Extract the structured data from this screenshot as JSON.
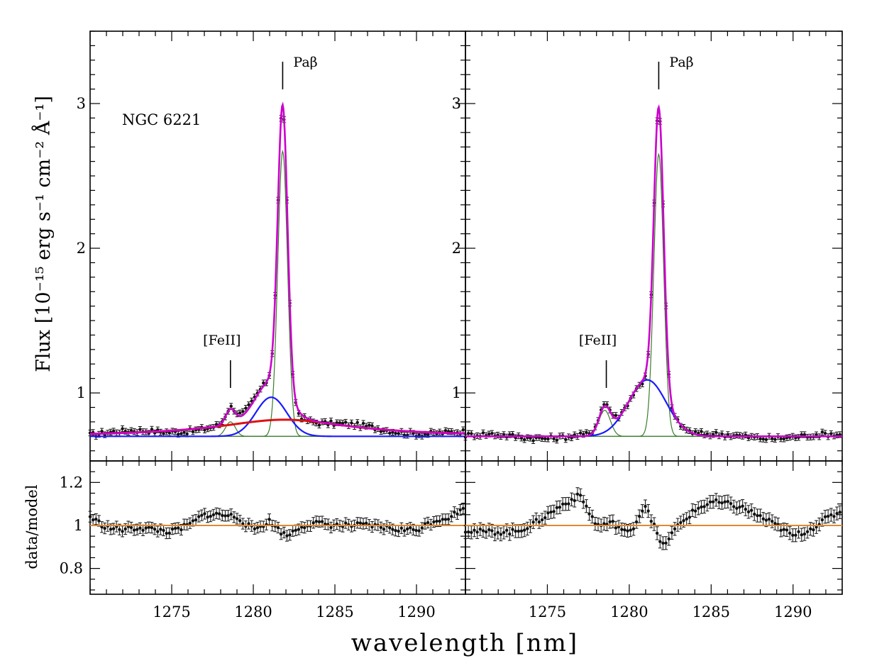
{
  "figure": {
    "object_label": "NGC 6221",
    "x_axis_label": "wavelength [nm]",
    "y_axis_label": "Flux [10⁻¹⁵ erg s⁻¹ cm⁻² Å⁻¹]",
    "ratio_axis_label": "data/model",
    "line_labels": {
      "pab": "Paβ",
      "feii": "[FeII]"
    }
  },
  "colors": {
    "data": "#111111",
    "total_model": "#cc00cc",
    "narrow_gauss": "#3a7d2a",
    "broad_gauss": "#1a1aff",
    "very_broad": "#dd1111",
    "continuum": "#2f6b2f",
    "unity_line": "#e08a2e"
  },
  "chart_data": [
    {
      "type": "line",
      "panel": "left-top",
      "title": "",
      "xlabel": "",
      "ylabel": "Flux [10⁻¹⁵ erg s⁻¹ cm⁻² Å⁻¹]",
      "xlim": [
        1270.0,
        1293.0
      ],
      "ylim": [
        0.53,
        3.5
      ],
      "x_ticks": [
        1275,
        1280,
        1285,
        1290
      ],
      "y_ticks": [
        1,
        2,
        3
      ],
      "annotation": "NGC 6221",
      "lines": {
        "pab": 1281.8,
        "feii": 1278.6
      },
      "continuum": 0.7,
      "components": [
        {
          "name": "Paβ narrow",
          "kind": "gauss",
          "amp": 1.97,
          "center": 1281.8,
          "sigma": 0.3
        },
        {
          "name": "[FeII] narrow",
          "kind": "gauss",
          "amp": 0.1,
          "center": 1278.6,
          "sigma": 0.3
        },
        {
          "name": "Paβ broad",
          "kind": "gauss",
          "amp": 0.27,
          "center": 1281.1,
          "sigma": 0.95
        },
        {
          "name": "Paβ very broad",
          "kind": "lorentz",
          "amp": 0.115,
          "center": 1281.9,
          "gamma": 5.0
        }
      ],
      "data_points": {
        "start": 1270.0,
        "end": 1293.0,
        "step": 0.18,
        "error": 0.02
      }
    },
    {
      "type": "line",
      "panel": "right-top",
      "title": "",
      "xlabel": "",
      "ylabel": "",
      "xlim": [
        1270.0,
        1293.0
      ],
      "ylim": [
        0.53,
        3.5
      ],
      "x_ticks": [
        1275,
        1280,
        1285,
        1290
      ],
      "y_ticks": [
        1,
        2,
        3
      ],
      "lines": {
        "pab": 1281.8,
        "feii": 1278.6
      },
      "continuum": 0.7,
      "components": [
        {
          "name": "Paβ narrow",
          "kind": "gauss",
          "amp": 1.95,
          "center": 1281.8,
          "sigma": 0.3
        },
        {
          "name": "[FeII] narrow",
          "kind": "gauss",
          "amp": 0.18,
          "center": 1278.5,
          "sigma": 0.35
        },
        {
          "name": "Paβ broad",
          "kind": "gauss",
          "amp": 0.39,
          "center": 1281.1,
          "sigma": 1.15
        }
      ],
      "data_points": {
        "start": 1270.0,
        "end": 1293.0,
        "step": 0.18,
        "error": 0.02
      }
    },
    {
      "type": "scatter",
      "panel": "left-bottom",
      "ylabel": "data/model",
      "xlabel": "wavelength [nm]",
      "xlim": [
        1270.0,
        1293.0
      ],
      "ylim": [
        0.68,
        1.3
      ],
      "x_ticks": [
        1275,
        1280,
        1285,
        1290
      ],
      "y_ticks": [
        0.8,
        1,
        1.2
      ],
      "y_tick_labels": [
        "0.8",
        "1",
        "1.2"
      ],
      "reference": 1.0,
      "ratio_profile": {
        "x": [
          1270,
          1271,
          1272,
          1273,
          1274,
          1275,
          1276,
          1277,
          1278,
          1279,
          1280,
          1281,
          1282,
          1283,
          1284,
          1285,
          1286,
          1287,
          1288,
          1289,
          1290,
          1291,
          1292,
          1293
        ],
        "y": [
          1.04,
          0.99,
          0.98,
          0.99,
          0.98,
          0.97,
          1.0,
          1.05,
          1.05,
          1.04,
          0.98,
          1.02,
          0.95,
          1.0,
          1.01,
          1.0,
          1.0,
          1.0,
          0.99,
          0.98,
          0.98,
          1.02,
          1.04,
          1.08
        ]
      },
      "error": 0.025
    },
    {
      "type": "scatter",
      "panel": "right-bottom",
      "ylabel": "",
      "xlabel": "wavelength [nm]",
      "xlim": [
        1270.0,
        1293.0
      ],
      "ylim": [
        0.68,
        1.3
      ],
      "x_ticks": [
        1275,
        1280,
        1285,
        1290
      ],
      "y_ticks": [
        0.8,
        1,
        1.2
      ],
      "reference": 1.0,
      "ratio_profile": {
        "x": [
          1270,
          1271,
          1272,
          1273,
          1274,
          1275,
          1276,
          1277,
          1278,
          1279,
          1280,
          1281,
          1282,
          1283,
          1284,
          1285,
          1286,
          1287,
          1288,
          1289,
          1290,
          1291,
          1292,
          1293
        ],
        "y": [
          0.98,
          0.97,
          0.97,
          0.97,
          1.0,
          1.05,
          1.1,
          1.14,
          1.0,
          1.01,
          0.96,
          1.1,
          0.9,
          1.0,
          1.07,
          1.11,
          1.1,
          1.08,
          1.04,
          1.0,
          0.95,
          0.98,
          1.03,
          1.07
        ]
      },
      "error": 0.03
    }
  ]
}
